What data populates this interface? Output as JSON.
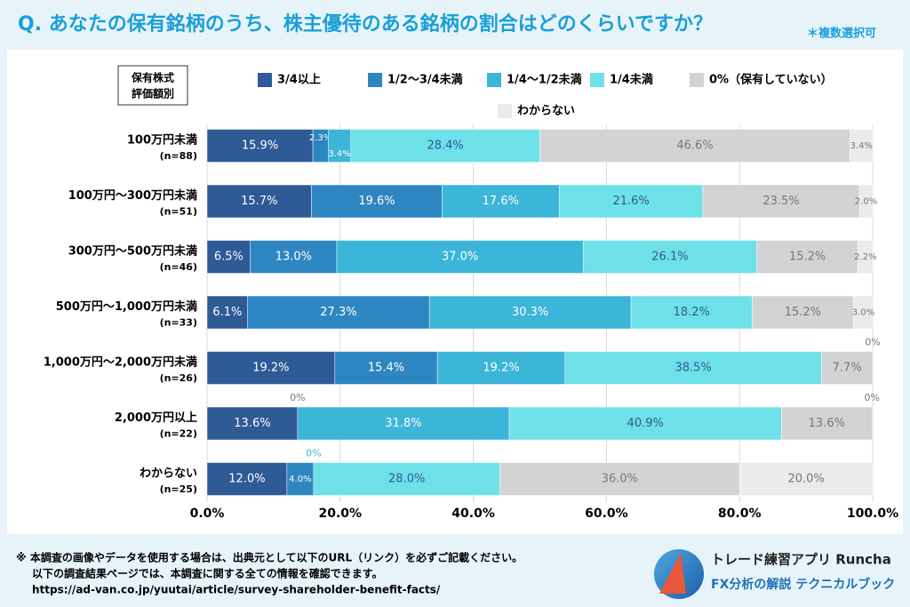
{
  "title": "Q. あなたの保有銘柄のうち、株主優待のある銘柄の割合はどのくらいですか？",
  "subtitle": "＊複数選択可",
  "chart_data": {
    "type": "stacked-bar-horizontal",
    "axis_label": [
      "保有株式",
      "評価額別"
    ],
    "categories": [
      "100万円未満",
      "100万円～300万円未満",
      "300万円～500万円未満",
      "500万円～1,000万円未満",
      "1,000万円～2,000万円未満",
      "2,000万円以上",
      "わからない"
    ],
    "sample_sizes": [
      "(n=88)",
      "(n=51)",
      "(n=46)",
      "(n=33)",
      "(n=26)",
      "(n=22)",
      "(n=25)"
    ],
    "series": [
      {
        "name": "3/4以上",
        "color": "#2e5a96",
        "values": [
          15.9,
          15.7,
          6.5,
          6.1,
          19.2,
          13.6,
          12.0
        ],
        "value_labels": [
          "15.9%",
          "15.7%",
          "6.5%",
          "6.1%",
          "19.2%",
          "13.6%",
          "12.0%"
        ]
      },
      {
        "name": "1/2～3/4未満",
        "color": "#2e86c1",
        "values": [
          2.3,
          19.6,
          13.0,
          27.3,
          15.4,
          0,
          4.0
        ],
        "value_labels": [
          "2.3%",
          "19.6%",
          "13.0%",
          "27.3%",
          "15.4%",
          "0%",
          "4.0%"
        ]
      },
      {
        "name": "1/4～1/2未満",
        "color": "#3bb5d8",
        "values": [
          3.4,
          17.6,
          37.0,
          30.3,
          19.2,
          31.8,
          0
        ],
        "value_labels": [
          "3.4%",
          "17.6%",
          "37.0%",
          "30.3%",
          "19.2%",
          "31.8%",
          "0%"
        ]
      },
      {
        "name": "1/4未満",
        "color": "#6ee0e8",
        "values": [
          28.4,
          21.6,
          26.1,
          18.2,
          38.5,
          40.9,
          28.0
        ],
        "value_labels": [
          "28.4%",
          "21.6%",
          "26.1%",
          "18.2%",
          "38.5%",
          "40.9%",
          "28.0%"
        ]
      },
      {
        "name": "0%（保有していない）",
        "color": "#d3d3d3",
        "values": [
          46.6,
          23.5,
          15.2,
          15.2,
          7.7,
          13.6,
          36.0
        ],
        "value_labels": [
          "46.6%",
          "23.5%",
          "15.2%",
          "15.2%",
          "7.7%",
          "13.6%",
          "36.0%"
        ]
      },
      {
        "name": "わからない",
        "color": "#ebebeb",
        "values": [
          3.4,
          2.0,
          2.2,
          3.0,
          0,
          0,
          20.0
        ],
        "value_labels": [
          "3.4%",
          "2.0%",
          "2.2%",
          "3.0%",
          "0%",
          "0%",
          "20.0%"
        ]
      }
    ],
    "xlim": [
      0,
      100
    ],
    "xticks": [
      {
        "value": 0,
        "label": "0.0%"
      },
      {
        "value": 20,
        "label": "20.0%"
      },
      {
        "value": 40,
        "label": "40.0%"
      },
      {
        "value": 60,
        "label": "60.0%"
      },
      {
        "value": 80,
        "label": "80.0%"
      },
      {
        "value": 100,
        "label": "100.0%"
      }
    ],
    "grid": true
  },
  "footer": {
    "notes": [
      "※ 本調査の画像やデータを使用する場合は、出典元として以下のURL（リンク）を必ずご記載ください。",
      "以下の調査結果ページでは、本調査に関する全ての情報を確認できます。",
      "https://ad-van.co.jp/yuutai/article/survey-shareholder-benefit-facts/"
    ],
    "brand": "トレード練習アプリ Runcha",
    "brand_sub": "FX分析の解説 テクニカルブック"
  }
}
